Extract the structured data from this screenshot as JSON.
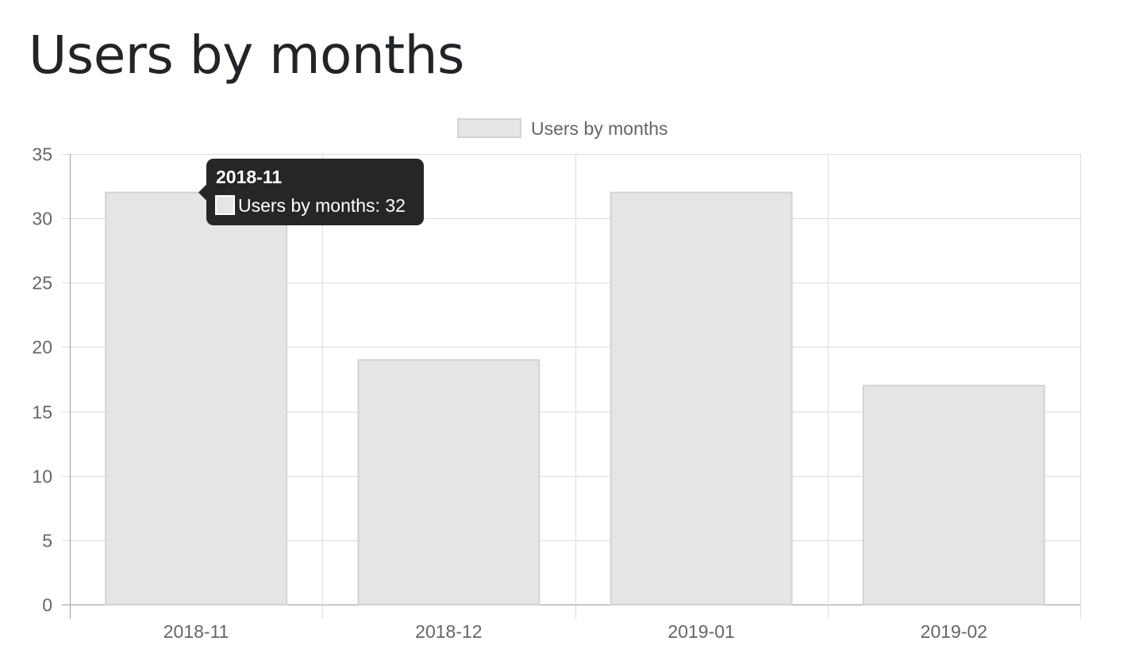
{
  "page": {
    "title": "Users by months"
  },
  "chart_data": {
    "type": "bar",
    "categories": [
      "2018-11",
      "2018-12",
      "2019-01",
      "2019-02"
    ],
    "series": [
      {
        "name": "Users by months",
        "values": [
          32,
          19,
          32,
          17
        ]
      }
    ],
    "xlabel": "",
    "ylabel": "",
    "ylim": [
      0,
      35
    ],
    "yticks": [
      0,
      5,
      10,
      15,
      20,
      25,
      30,
      35
    ],
    "grid": true,
    "legend_position": "top-center",
    "colors": {
      "bar_fill": "#e5e5e5",
      "bar_border": "#d2d2d2",
      "grid": "#e0e0e0",
      "axis": "#a6a6a6",
      "tick_text": "#666666",
      "tooltip_bg": "#262626",
      "tooltip_text": "#ffffff"
    },
    "tooltip": {
      "category": "2018-11",
      "label": "Users by months: 32"
    }
  }
}
